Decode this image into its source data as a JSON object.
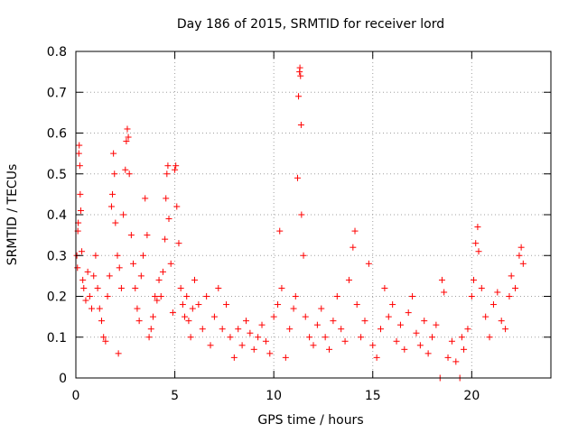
{
  "chart_data": {
    "type": "scatter",
    "title": "Day 186 of 2015, SRMTID for receiver lord",
    "xlabel": "GPS time / hours",
    "ylabel": "SRMTID / TECUs",
    "xlim": [
      0,
      24
    ],
    "ylim": [
      0,
      0.8
    ],
    "x_ticks": [
      0,
      5,
      10,
      15,
      20
    ],
    "x_tick_labels": [
      "0",
      "5",
      "10",
      "15",
      "20"
    ],
    "y_ticks": [
      0,
      0.1,
      0.2,
      0.3,
      0.4,
      0.5,
      0.6,
      0.7,
      0.8
    ],
    "y_tick_labels": [
      "0",
      "0.1",
      "0.2",
      "0.3",
      "0.4",
      "0.5",
      "0.6",
      "0.7",
      "0.8"
    ],
    "grid": true,
    "marker": "plus",
    "color": "#ff0000",
    "series": [
      {
        "name": "SRMTID",
        "points": [
          [
            0.05,
            0.3
          ],
          [
            0.08,
            0.27
          ],
          [
            0.1,
            0.36
          ],
          [
            0.12,
            0.38
          ],
          [
            0.15,
            0.55
          ],
          [
            0.17,
            0.57
          ],
          [
            0.2,
            0.52
          ],
          [
            0.22,
            0.45
          ],
          [
            0.25,
            0.41
          ],
          [
            0.3,
            0.31
          ],
          [
            0.35,
            0.24
          ],
          [
            0.4,
            0.22
          ],
          [
            0.5,
            0.19
          ],
          [
            0.6,
            0.26
          ],
          [
            0.7,
            0.2
          ],
          [
            0.8,
            0.17
          ],
          [
            0.9,
            0.25
          ],
          [
            1.0,
            0.3
          ],
          [
            1.1,
            0.22
          ],
          [
            1.2,
            0.17
          ],
          [
            1.3,
            0.14
          ],
          [
            1.4,
            0.1
          ],
          [
            1.5,
            0.09
          ],
          [
            1.6,
            0.2
          ],
          [
            1.7,
            0.25
          ],
          [
            1.8,
            0.42
          ],
          [
            1.85,
            0.45
          ],
          [
            1.9,
            0.55
          ],
          [
            1.95,
            0.5
          ],
          [
            2.0,
            0.38
          ],
          [
            2.1,
            0.3
          ],
          [
            2.15,
            0.06
          ],
          [
            2.2,
            0.27
          ],
          [
            2.3,
            0.22
          ],
          [
            2.4,
            0.4
          ],
          [
            2.5,
            0.51
          ],
          [
            2.55,
            0.58
          ],
          [
            2.6,
            0.61
          ],
          [
            2.65,
            0.59
          ],
          [
            2.7,
            0.5
          ],
          [
            2.8,
            0.35
          ],
          [
            2.9,
            0.28
          ],
          [
            3.0,
            0.22
          ],
          [
            3.1,
            0.17
          ],
          [
            3.2,
            0.14
          ],
          [
            3.3,
            0.25
          ],
          [
            3.4,
            0.3
          ],
          [
            3.5,
            0.44
          ],
          [
            3.6,
            0.35
          ],
          [
            3.7,
            0.1
          ],
          [
            3.8,
            0.12
          ],
          [
            3.9,
            0.15
          ],
          [
            4.0,
            0.2
          ],
          [
            4.1,
            0.19
          ],
          [
            4.2,
            0.24
          ],
          [
            4.3,
            0.2
          ],
          [
            4.4,
            0.26
          ],
          [
            4.5,
            0.34
          ],
          [
            4.55,
            0.44
          ],
          [
            4.6,
            0.5
          ],
          [
            4.65,
            0.52
          ],
          [
            4.7,
            0.39
          ],
          [
            4.8,
            0.28
          ],
          [
            4.9,
            0.16
          ],
          [
            5.0,
            0.51
          ],
          [
            5.05,
            0.52
          ],
          [
            5.1,
            0.42
          ],
          [
            5.2,
            0.33
          ],
          [
            5.3,
            0.22
          ],
          [
            5.4,
            0.18
          ],
          [
            5.5,
            0.15
          ],
          [
            5.6,
            0.2
          ],
          [
            5.7,
            0.14
          ],
          [
            5.8,
            0.1
          ],
          [
            5.9,
            0.17
          ],
          [
            6.0,
            0.24
          ],
          [
            6.2,
            0.18
          ],
          [
            6.4,
            0.12
          ],
          [
            6.6,
            0.2
          ],
          [
            6.8,
            0.08
          ],
          [
            7.0,
            0.15
          ],
          [
            7.2,
            0.22
          ],
          [
            7.4,
            0.12
          ],
          [
            7.6,
            0.18
          ],
          [
            7.8,
            0.1
          ],
          [
            8.0,
            0.05
          ],
          [
            8.2,
            0.12
          ],
          [
            8.4,
            0.08
          ],
          [
            8.6,
            0.14
          ],
          [
            8.8,
            0.11
          ],
          [
            9.0,
            0.07
          ],
          [
            9.2,
            0.1
          ],
          [
            9.4,
            0.13
          ],
          [
            9.6,
            0.09
          ],
          [
            9.8,
            0.06
          ],
          [
            10.0,
            0.15
          ],
          [
            10.2,
            0.18
          ],
          [
            10.3,
            0.36
          ],
          [
            10.4,
            0.22
          ],
          [
            10.6,
            0.05
          ],
          [
            10.8,
            0.12
          ],
          [
            11.0,
            0.17
          ],
          [
            11.1,
            0.2
          ],
          [
            11.2,
            0.49
          ],
          [
            11.25,
            0.69
          ],
          [
            11.3,
            0.75
          ],
          [
            11.32,
            0.76
          ],
          [
            11.35,
            0.74
          ],
          [
            11.38,
            0.62
          ],
          [
            11.4,
            0.4
          ],
          [
            11.5,
            0.3
          ],
          [
            11.6,
            0.15
          ],
          [
            11.8,
            0.1
          ],
          [
            12.0,
            0.08
          ],
          [
            12.2,
            0.13
          ],
          [
            12.4,
            0.17
          ],
          [
            12.6,
            0.1
          ],
          [
            12.8,
            0.07
          ],
          [
            13.0,
            0.14
          ],
          [
            13.2,
            0.2
          ],
          [
            13.4,
            0.12
          ],
          [
            13.6,
            0.09
          ],
          [
            13.8,
            0.24
          ],
          [
            14.0,
            0.32
          ],
          [
            14.1,
            0.36
          ],
          [
            14.2,
            0.18
          ],
          [
            14.4,
            0.1
          ],
          [
            14.6,
            0.14
          ],
          [
            14.8,
            0.28
          ],
          [
            15.0,
            0.08
          ],
          [
            15.2,
            0.05
          ],
          [
            15.4,
            0.12
          ],
          [
            15.6,
            0.22
          ],
          [
            15.8,
            0.15
          ],
          [
            16.0,
            0.18
          ],
          [
            16.2,
            0.09
          ],
          [
            16.4,
            0.13
          ],
          [
            16.6,
            0.07
          ],
          [
            16.8,
            0.16
          ],
          [
            17.0,
            0.2
          ],
          [
            17.2,
            0.11
          ],
          [
            17.4,
            0.08
          ],
          [
            17.6,
            0.14
          ],
          [
            17.8,
            0.06
          ],
          [
            18.0,
            0.1
          ],
          [
            18.2,
            0.13
          ],
          [
            18.4,
            0.0
          ],
          [
            18.5,
            0.24
          ],
          [
            18.6,
            0.21
          ],
          [
            18.8,
            0.05
          ],
          [
            19.0,
            0.09
          ],
          [
            19.2,
            0.04
          ],
          [
            19.4,
            0.0
          ],
          [
            19.5,
            0.1
          ],
          [
            19.6,
            0.07
          ],
          [
            19.8,
            0.12
          ],
          [
            20.0,
            0.2
          ],
          [
            20.1,
            0.24
          ],
          [
            20.2,
            0.33
          ],
          [
            20.3,
            0.37
          ],
          [
            20.35,
            0.31
          ],
          [
            20.5,
            0.22
          ],
          [
            20.7,
            0.15
          ],
          [
            20.9,
            0.1
          ],
          [
            21.1,
            0.18
          ],
          [
            21.3,
            0.21
          ],
          [
            21.5,
            0.14
          ],
          [
            21.7,
            0.12
          ],
          [
            21.9,
            0.2
          ],
          [
            22.0,
            0.25
          ],
          [
            22.2,
            0.22
          ],
          [
            22.4,
            0.3
          ],
          [
            22.5,
            0.32
          ],
          [
            22.6,
            0.28
          ]
        ]
      }
    ]
  }
}
